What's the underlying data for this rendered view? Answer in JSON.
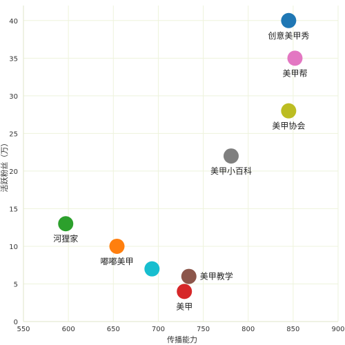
{
  "chart_data": {
    "type": "scatter",
    "xlabel": "传播能力",
    "ylabel": "活跃粉丝（万）",
    "xlim": [
      550,
      900
    ],
    "ylim": [
      0,
      42
    ],
    "xticks": [
      550,
      600,
      650,
      700,
      750,
      800,
      850,
      900
    ],
    "yticks": [
      0,
      5,
      10,
      15,
      20,
      25,
      30,
      35,
      40
    ],
    "grid": true,
    "points": [
      {
        "label": "创意美甲秀",
        "x": 845,
        "y": 40,
        "color": "#1f77b4",
        "label_pos": "below"
      },
      {
        "label": "美甲帮",
        "x": 852,
        "y": 35,
        "color": "#e377c2",
        "label_pos": "below"
      },
      {
        "label": "美甲协会",
        "x": 845,
        "y": 28,
        "color": "#bcbd22",
        "label_pos": "below"
      },
      {
        "label": "美甲小百科",
        "x": 781,
        "y": 22,
        "color": "#7f7f7f",
        "label_pos": "below"
      },
      {
        "label": "河狸家",
        "x": 597,
        "y": 13,
        "color": "#2ca02c",
        "label_pos": "below"
      },
      {
        "label": "嘟嘟美甲",
        "x": 654,
        "y": 10,
        "color": "#ff7f0e",
        "label_pos": "below"
      },
      {
        "label": "",
        "x": 693,
        "y": 7,
        "color": "#17becf",
        "label_pos": "below"
      },
      {
        "label": "美甲教学",
        "x": 734,
        "y": 6,
        "color": "#8c564b",
        "label_pos": "right"
      },
      {
        "label": "美甲",
        "x": 729,
        "y": 4,
        "color": "#d62728",
        "label_pos": "below"
      }
    ]
  }
}
